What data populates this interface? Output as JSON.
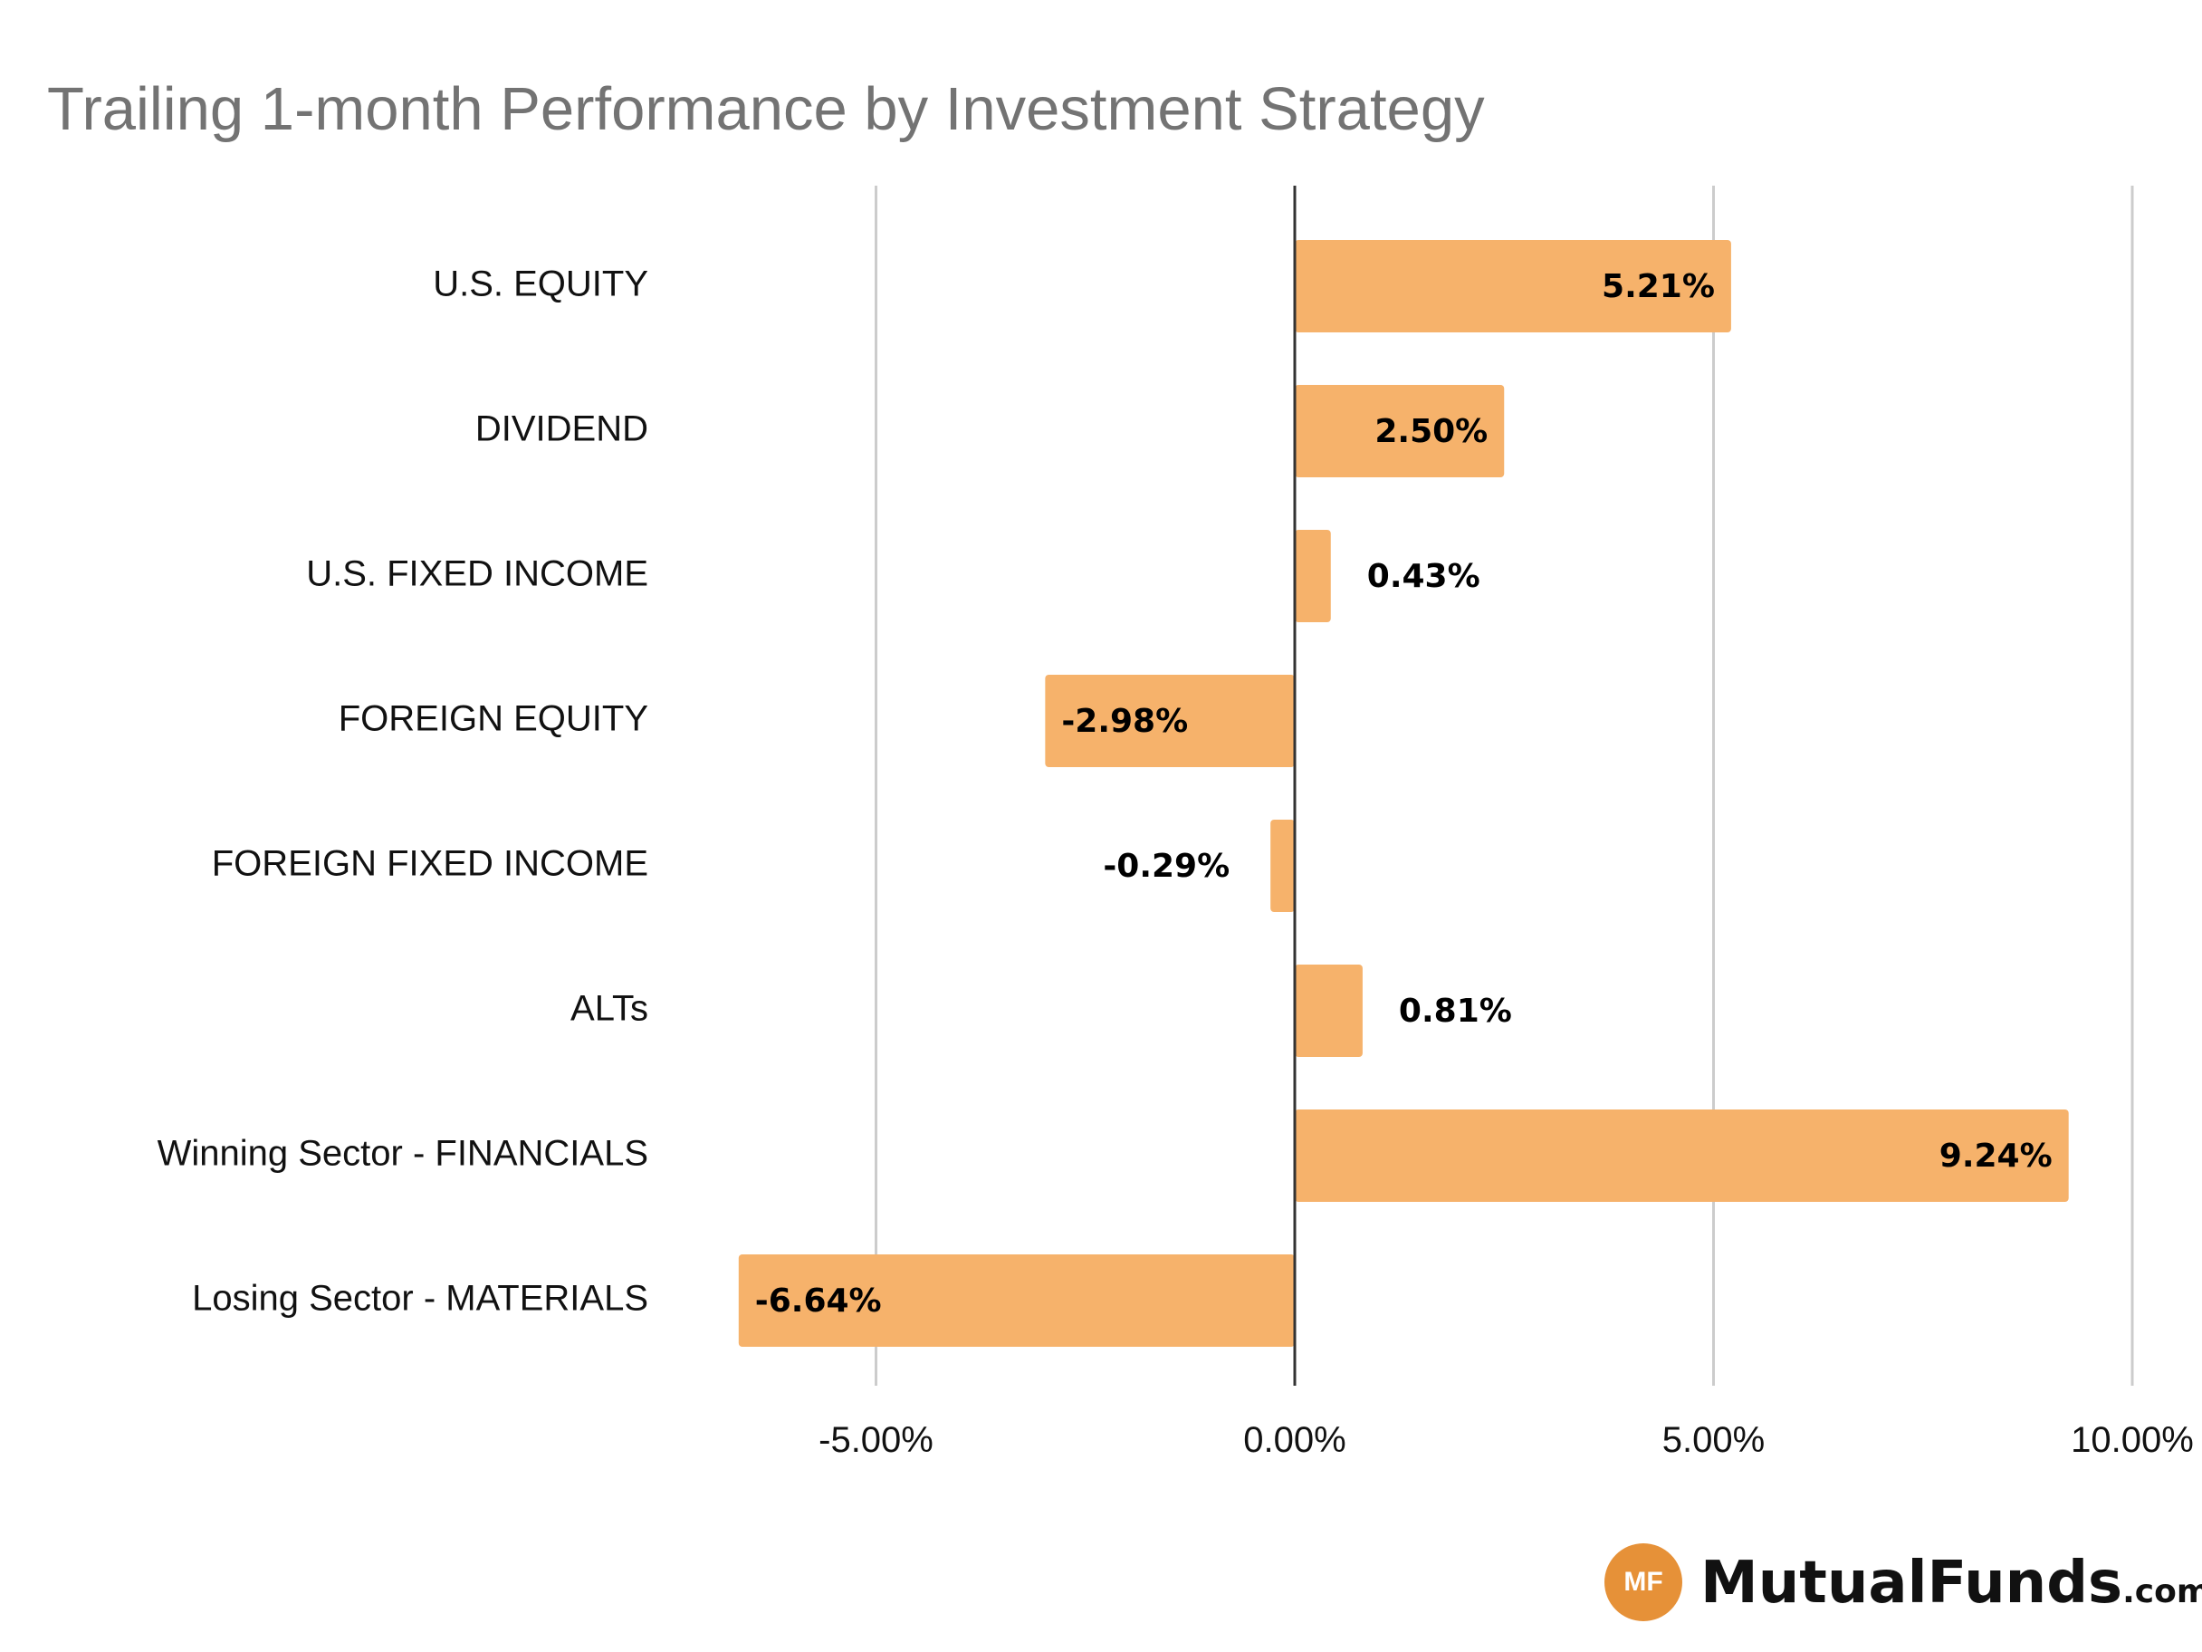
{
  "chart_data": {
    "type": "bar",
    "orientation": "horizontal",
    "title": "Trailing 1-month Performance by Investment Strategy",
    "categories": [
      "U.S. EQUITY",
      "DIVIDEND",
      "U.S. FIXED INCOME",
      "FOREIGN EQUITY",
      "FOREIGN FIXED INCOME",
      "ALTs",
      "Winning Sector - FINANCIALS",
      "Losing Sector - MATERIALS"
    ],
    "values": [
      5.21,
      2.5,
      0.43,
      -2.98,
      -0.29,
      0.81,
      9.24,
      -6.64
    ],
    "data_labels": [
      "5.21%",
      "2.50%",
      "0.43%",
      "-2.98%",
      "-0.29%",
      "0.81%",
      "9.24%",
      "-6.64%"
    ],
    "xticks": [
      -5,
      0,
      5,
      10
    ],
    "xtick_labels": [
      "-5.00%",
      "0.00%",
      "5.00%",
      "10.00%"
    ],
    "xlim": [
      -10,
      10
    ],
    "grid": true,
    "bar_color": "#F6B26B",
    "xlabel": "",
    "ylabel": ""
  },
  "branding": {
    "logo_badge": "MF",
    "logo_name": "MutualFunds",
    "logo_tld": ".com",
    "badge_color": "#E69138"
  }
}
